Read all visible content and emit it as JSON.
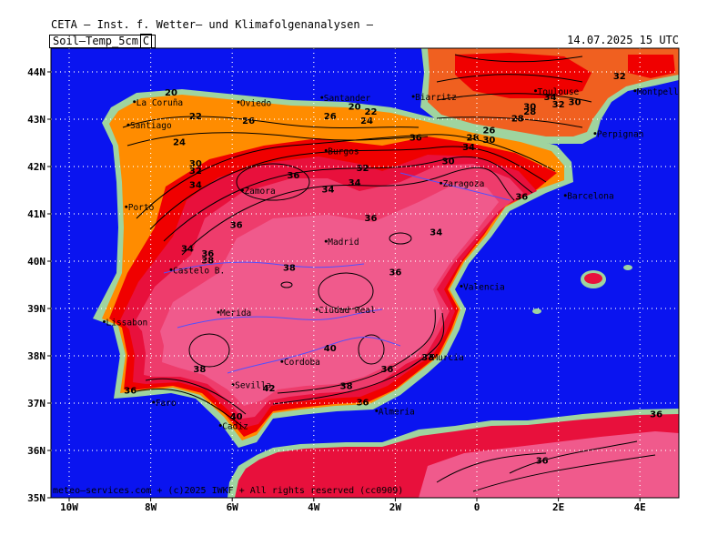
{
  "header": {
    "title": "CETA – Inst. f. Wetter– und Klimafolgenanalysen –",
    "parameter": "Soil–Temp_5cm",
    "unit": "C",
    "valid": "14.07.2025 15 UTC"
  },
  "axes": {
    "lat_labels": [
      "44N",
      "43N",
      "42N",
      "41N",
      "40N",
      "39N",
      "38N",
      "37N",
      "36N",
      "35N"
    ],
    "lon_labels": [
      "10W",
      "8W",
      "6W",
      "4W",
      "2W",
      "0",
      "2E",
      "4E"
    ]
  },
  "footer": {
    "credit": "meteo–services.com + (c)2025 IWKF + All rights reserved (cc0909)"
  },
  "colors": {
    "sea": "#0a14f0",
    "coast": "#9fd49f",
    "orange": "#ff8c00",
    "dark_orange": "#f06020",
    "red": "#f00000",
    "crimson": "#e8103c",
    "pink": "#ee3c6c",
    "light_pink": "#f05a8c"
  },
  "cities": [
    {
      "name": "La Coruña",
      "lon": -8.4,
      "lat": 43.37
    },
    {
      "name": "Oviedo",
      "lon": -5.85,
      "lat": 43.36
    },
    {
      "name": "Santander",
      "lon": -3.8,
      "lat": 43.46
    },
    {
      "name": "Biarritz",
      "lon": -1.56,
      "lat": 43.48
    },
    {
      "name": "Toulouse",
      "lon": 1.44,
      "lat": 43.6
    },
    {
      "name": "Montpellier",
      "lon": 3.88,
      "lat": 43.6
    },
    {
      "name": "Santiago",
      "lon": -8.55,
      "lat": 42.88
    },
    {
      "name": "Perpignan",
      "lon": 2.9,
      "lat": 42.7
    },
    {
      "name": "Burgos",
      "lon": -3.7,
      "lat": 42.34
    },
    {
      "name": "Zamora",
      "lon": -5.75,
      "lat": 41.5
    },
    {
      "name": "Zaragoza",
      "lon": -0.88,
      "lat": 41.65
    },
    {
      "name": "Barcelona",
      "lon": 2.17,
      "lat": 41.39
    },
    {
      "name": "Porto",
      "lon": -8.6,
      "lat": 41.15
    },
    {
      "name": "Madrid",
      "lon": -3.7,
      "lat": 40.42
    },
    {
      "name": "Castelo B.",
      "lon": -7.5,
      "lat": 39.82
    },
    {
      "name": "Valencia",
      "lon": -0.38,
      "lat": 39.47
    },
    {
      "name": "Merida",
      "lon": -6.34,
      "lat": 38.92
    },
    {
      "name": "Ciudad Real",
      "lon": -3.93,
      "lat": 38.98
    },
    {
      "name": "Lissabon",
      "lon": -9.14,
      "lat": 38.72
    },
    {
      "name": "Cordoba",
      "lon": -4.78,
      "lat": 37.88
    },
    {
      "name": "Murcia",
      "lon": -1.13,
      "lat": 37.98
    },
    {
      "name": "Sevilla",
      "lon": -5.98,
      "lat": 37.39
    },
    {
      "name": "Almeria",
      "lon": -2.46,
      "lat": 36.84
    },
    {
      "name": "Faro",
      "lon": -7.93,
      "lat": 37.02
    },
    {
      "name": "Cadiz",
      "lon": -6.29,
      "lat": 36.53
    }
  ],
  "contour_labels": [
    {
      "v": "20",
      "lon": -7.5,
      "lat": 43.5
    },
    {
      "v": "22",
      "lon": -6.9,
      "lat": 43.0
    },
    {
      "v": "26",
      "lon": -5.6,
      "lat": 42.9
    },
    {
      "v": "20",
      "lon": -3.0,
      "lat": 43.2
    },
    {
      "v": "22",
      "lon": -2.6,
      "lat": 43.1
    },
    {
      "v": "26",
      "lon": -3.6,
      "lat": 43.0
    },
    {
      "v": "24",
      "lon": -2.7,
      "lat": 42.9
    },
    {
      "v": "24",
      "lon": -7.3,
      "lat": 42.45
    },
    {
      "v": "30",
      "lon": -6.9,
      "lat": 42.0
    },
    {
      "v": "32",
      "lon": -6.9,
      "lat": 41.85
    },
    {
      "v": "34",
      "lon": -6.9,
      "lat": 41.55
    },
    {
      "v": "36",
      "lon": -4.5,
      "lat": 41.75
    },
    {
      "v": "34",
      "lon": -3.65,
      "lat": 41.45
    },
    {
      "v": "34",
      "lon": -3.0,
      "lat": 41.6
    },
    {
      "v": "32",
      "lon": -2.8,
      "lat": 41.9
    },
    {
      "v": "36",
      "lon": -1.5,
      "lat": 42.55
    },
    {
      "v": "30",
      "lon": -0.7,
      "lat": 42.05
    },
    {
      "v": "28",
      "lon": -0.1,
      "lat": 42.55
    },
    {
      "v": "26",
      "lon": 0.3,
      "lat": 42.7
    },
    {
      "v": "30",
      "lon": 0.3,
      "lat": 42.5
    },
    {
      "v": "34",
      "lon": -0.2,
      "lat": 42.35
    },
    {
      "v": "28",
      "lon": 1.3,
      "lat": 43.1
    },
    {
      "v": "30",
      "lon": 1.3,
      "lat": 43.2
    },
    {
      "v": "32",
      "lon": 2.0,
      "lat": 43.25
    },
    {
      "v": "30",
      "lon": 2.4,
      "lat": 43.3
    },
    {
      "v": "28",
      "lon": 1.0,
      "lat": 42.95
    },
    {
      "v": "34",
      "lon": 1.8,
      "lat": 43.4
    },
    {
      "v": "32",
      "lon": 3.5,
      "lat": 43.85
    },
    {
      "v": "36",
      "lon": 1.1,
      "lat": 41.3
    },
    {
      "v": "36",
      "lon": -2.6,
      "lat": 40.85
    },
    {
      "v": "34",
      "lon": -1.0,
      "lat": 40.55
    },
    {
      "v": "38",
      "lon": -4.6,
      "lat": 39.8
    },
    {
      "v": "36",
      "lon": -2.0,
      "lat": 39.7
    },
    {
      "v": "36",
      "lon": -5.9,
      "lat": 40.7
    },
    {
      "v": "34",
      "lon": -7.1,
      "lat": 40.2
    },
    {
      "v": "36",
      "lon": -6.6,
      "lat": 40.1
    },
    {
      "v": "38",
      "lon": -6.6,
      "lat": 39.95
    },
    {
      "v": "40",
      "lon": -3.6,
      "lat": 38.1
    },
    {
      "v": "38",
      "lon": -6.8,
      "lat": 37.65
    },
    {
      "v": "42",
      "lon": -5.1,
      "lat": 37.25
    },
    {
      "v": "38",
      "lon": -3.2,
      "lat": 37.3
    },
    {
      "v": "36",
      "lon": -2.2,
      "lat": 37.65
    },
    {
      "v": "38",
      "lon": -1.2,
      "lat": 37.9
    },
    {
      "v": "36",
      "lon": -8.5,
      "lat": 37.2
    },
    {
      "v": "36",
      "lon": -2.8,
      "lat": 36.95
    },
    {
      "v": "40",
      "lon": -5.9,
      "lat": 36.65
    },
    {
      "v": "36",
      "lon": 1.6,
      "lat": 35.72
    },
    {
      "v": "36",
      "lon": 4.4,
      "lat": 36.7
    }
  ]
}
